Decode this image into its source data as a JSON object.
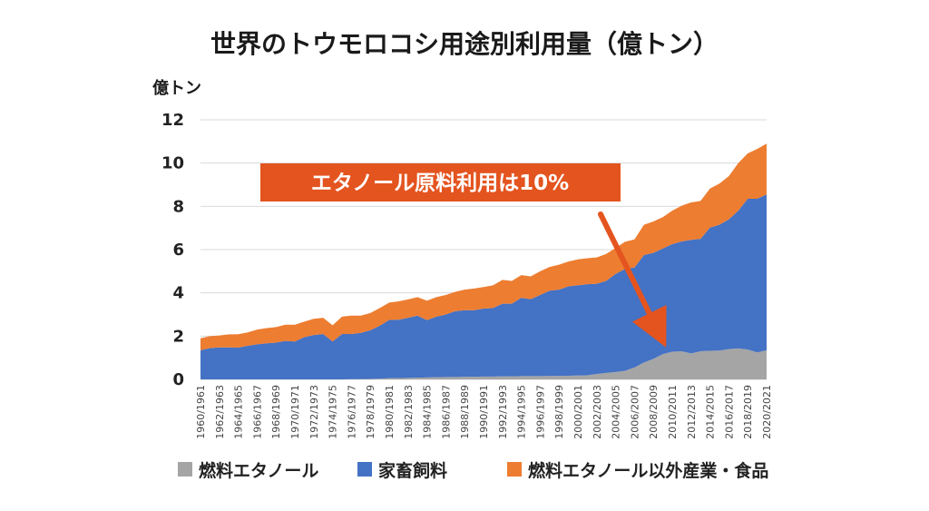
{
  "chart_data": {
    "type": "area",
    "stacked": true,
    "title": "世界のトウモロコシ用途別利用量（億トン）",
    "ylabel": "億トン",
    "xlabel": "",
    "ylim": [
      0,
      12
    ],
    "yticks": [
      0,
      2,
      4,
      6,
      8,
      10,
      12
    ],
    "grid": "horizontal",
    "legend_position": "bottom",
    "categories": [
      "1960/1961",
      "1961/1962",
      "1962/1963",
      "1963/1964",
      "1964/1965",
      "1965/1966",
      "1966/1967",
      "1967/1968",
      "1968/1969",
      "1969/1970",
      "1970/1971",
      "1971/1972",
      "1972/1973",
      "1973/1974",
      "1974/1975",
      "1975/1976",
      "1976/1977",
      "1977/1978",
      "1978/1979",
      "1979/1980",
      "1980/1981",
      "1981/1982",
      "1982/1983",
      "1983/1984",
      "1984/1985",
      "1985/1986",
      "1986/1987",
      "1987/1988",
      "1988/1989",
      "1989/1990",
      "1990/1991",
      "1991/1992",
      "1992/1993",
      "1993/1994",
      "1994/1995",
      "1995/1996",
      "1996/1997",
      "1997/1998",
      "1998/1999",
      "1999/2000",
      "2000/2001",
      "2001/2002",
      "2002/2003",
      "2003/2004",
      "2004/2005",
      "2005/2006",
      "2006/2007",
      "2007/2008",
      "2008/2009",
      "2009/2010",
      "2010/2011",
      "2011/2012",
      "2012/2013",
      "2013/2014",
      "2014/2015",
      "2015/2016",
      "2016/2017",
      "2017/2018",
      "2018/2019",
      "2019/2020",
      "2020/2021"
    ],
    "xtick_labels": [
      "1960/1961",
      "1962/1963",
      "1964/1965",
      "1966/1967",
      "1968/1969",
      "1970/1971",
      "1972/1973",
      "1974/1975",
      "1976/1977",
      "1978/1979",
      "1980/1981",
      "1982/1983",
      "1984/1985",
      "1986/1987",
      "1988/1989",
      "1990/1991",
      "1992/1993",
      "1994/1995",
      "1996/1997",
      "1998/1999",
      "2000/2001",
      "2002/2003",
      "2004/2005",
      "2006/2007",
      "2008/2009",
      "2010/2011",
      "2012/2013",
      "2014/2015",
      "2016/2017",
      "2018/2019",
      "2020/2021"
    ],
    "series": [
      {
        "name": "燃料エタノール",
        "color": "#a5a5a5",
        "values": [
          0,
          0,
          0,
          0,
          0,
          0,
          0,
          0,
          0,
          0,
          0,
          0,
          0,
          0,
          0,
          0,
          0.01,
          0.01,
          0.02,
          0.03,
          0.05,
          0.06,
          0.07,
          0.08,
          0.09,
          0.1,
          0.11,
          0.11,
          0.12,
          0.12,
          0.13,
          0.13,
          0.14,
          0.14,
          0.15,
          0.15,
          0.15,
          0.16,
          0.16,
          0.17,
          0.18,
          0.19,
          0.25,
          0.3,
          0.34,
          0.4,
          0.55,
          0.78,
          0.95,
          1.17,
          1.28,
          1.3,
          1.2,
          1.3,
          1.32,
          1.33,
          1.4,
          1.43,
          1.38,
          1.25,
          1.35
        ]
      },
      {
        "name": "家畜飼料",
        "color": "#4472c4",
        "values": [
          1.35,
          1.45,
          1.48,
          1.48,
          1.47,
          1.55,
          1.62,
          1.67,
          1.7,
          1.78,
          1.75,
          1.95,
          2.05,
          2.1,
          1.75,
          2.1,
          2.09,
          2.14,
          2.25,
          2.45,
          2.7,
          2.7,
          2.78,
          2.87,
          2.65,
          2.8,
          2.89,
          3.04,
          3.08,
          3.08,
          3.14,
          3.17,
          3.36,
          3.36,
          3.62,
          3.56,
          3.75,
          3.94,
          3.99,
          4.13,
          4.17,
          4.21,
          4.17,
          4.25,
          4.54,
          4.71,
          4.62,
          4.97,
          4.9,
          4.88,
          4.97,
          5.08,
          5.25,
          5.2,
          5.7,
          5.82,
          6.0,
          6.37,
          6.97,
          7.1,
          7.2
        ]
      },
      {
        "name": "燃料エタノール以外産業・食品",
        "color": "#ed7d31",
        "values": [
          0.55,
          0.55,
          0.55,
          0.6,
          0.62,
          0.62,
          0.68,
          0.7,
          0.72,
          0.75,
          0.78,
          0.72,
          0.75,
          0.75,
          0.75,
          0.8,
          0.85,
          0.8,
          0.8,
          0.82,
          0.8,
          0.85,
          0.85,
          0.85,
          0.9,
          0.9,
          0.9,
          0.9,
          0.95,
          1.0,
          1.0,
          1.05,
          1.1,
          1.05,
          1.05,
          1.05,
          1.1,
          1.1,
          1.15,
          1.15,
          1.2,
          1.2,
          1.22,
          1.25,
          1.2,
          1.25,
          1.3,
          1.4,
          1.45,
          1.45,
          1.55,
          1.65,
          1.73,
          1.75,
          1.8,
          1.9,
          2.0,
          2.2,
          2.1,
          2.3,
          2.35
        ]
      }
    ],
    "annotation": {
      "text": "エタノール原料利用は10%",
      "box_color": "#e4541f"
    }
  }
}
